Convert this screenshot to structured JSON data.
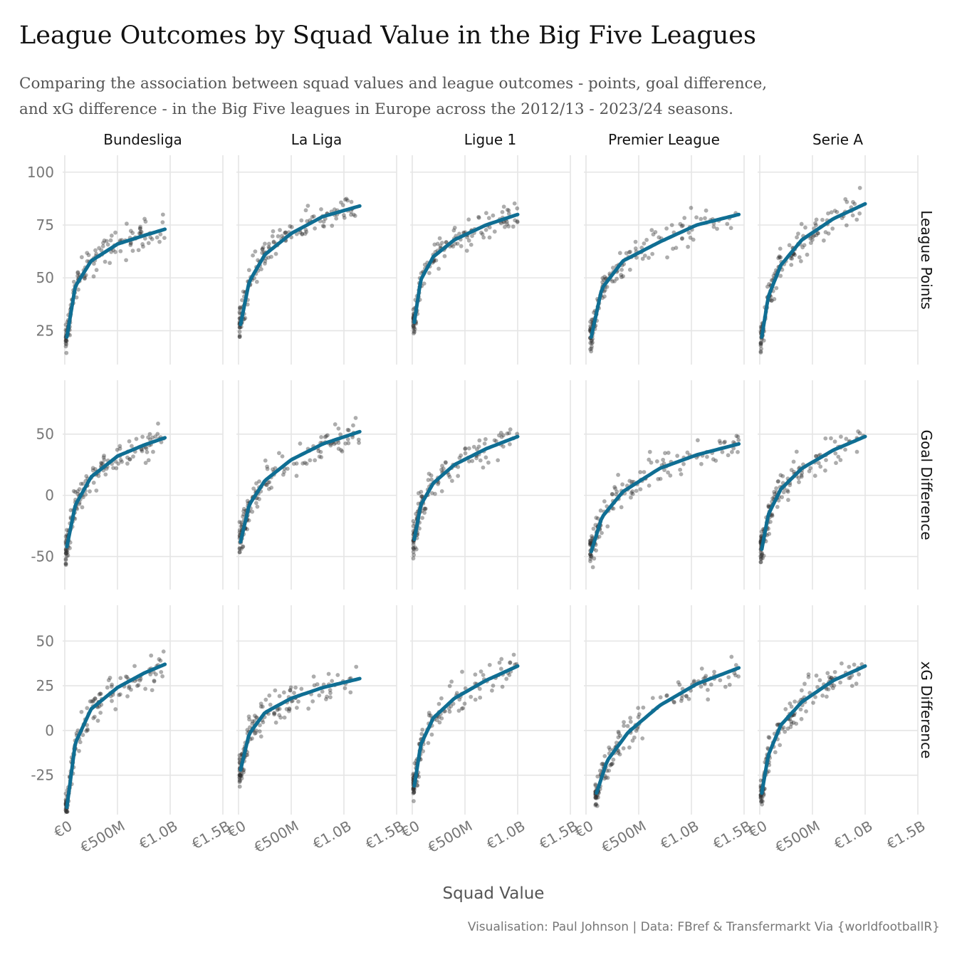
{
  "title": "League Outcomes by Squad Value in the Big Five Leagues",
  "subtitle": {
    "line1": "Comparing the association between squad values and league outcomes - points, goal difference,",
    "line2": "and xG difference - in the Big Five leagues in Europe across the 2012/13 - 2023/24 seasons."
  },
  "caption": "Visualisation: Paul Johnson | Data: FBref & Transfermarkt Via {worldfootballR}",
  "colors": {
    "fit_line": "#0F6E93",
    "points": "#333333",
    "grid": "#E5E5E5",
    "strip_text": "#111111",
    "axis_text": "#777777"
  },
  "chart_data": {
    "type": "scatter",
    "layout": "facet_grid",
    "x_label": "Squad Value",
    "x_ticks": [
      "€0",
      "€500M",
      "€1.0B",
      "€1.5B"
    ],
    "x_tick_values": [
      0,
      500,
      1000,
      1500
    ],
    "x_unit": "€M",
    "xlim": [
      -20,
      1500
    ],
    "grid": true,
    "trend": "logarithmic fit",
    "leagues": [
      "Bundesliga",
      "La Liga",
      "Ligue 1",
      "Premier League",
      "Serie A"
    ],
    "metrics": [
      {
        "name": "League Points",
        "ylim": [
          9,
          108
        ],
        "ticks": [
          25,
          50,
          75,
          100
        ],
        "tick_labels": [
          "25",
          "50",
          "75",
          "100"
        ]
      },
      {
        "name": "Goal Difference",
        "ylim": [
          -77,
          94
        ],
        "ticks": [
          -50,
          0,
          50
        ],
        "tick_labels": [
          "-50",
          "0",
          "50"
        ]
      },
      {
        "name": "xG Difference",
        "ylim": [
          -47,
          70
        ],
        "ticks": [
          -25,
          0,
          25,
          50
        ],
        "tick_labels": [
          "-25",
          "0",
          "25",
          "50"
        ]
      }
    ],
    "panels": {
      "Bundesliga": {
        "xmax": 950,
        "fits": {
          "League Points": [
            [
              20,
              22
            ],
            [
              100,
              46
            ],
            [
              250,
              58
            ],
            [
              500,
              66
            ],
            [
              750,
              70
            ],
            [
              950,
              73
            ]
          ],
          "Goal Difference": [
            [
              20,
              -42
            ],
            [
              100,
              -8
            ],
            [
              250,
              15
            ],
            [
              500,
              32
            ],
            [
              750,
              41
            ],
            [
              950,
              47
            ]
          ],
          "xG Difference": [
            [
              20,
              -43
            ],
            [
              100,
              -7
            ],
            [
              250,
              12
            ],
            [
              500,
              24
            ],
            [
              750,
              32
            ],
            [
              950,
              37
            ]
          ]
        }
      },
      "La Liga": {
        "xmax": 1150,
        "fits": {
          "League Points": [
            [
              20,
              28
            ],
            [
              100,
              48
            ],
            [
              250,
              61
            ],
            [
              500,
              71
            ],
            [
              800,
              79
            ],
            [
              1150,
              84
            ]
          ],
          "Goal Difference": [
            [
              20,
              -38
            ],
            [
              100,
              -8
            ],
            [
              250,
              12
            ],
            [
              500,
              29
            ],
            [
              800,
              42
            ],
            [
              1150,
              52
            ]
          ],
          "xG Difference": [
            [
              20,
              -22
            ],
            [
              100,
              -2
            ],
            [
              250,
              10
            ],
            [
              500,
              18
            ],
            [
              800,
              24
            ],
            [
              1150,
              29
            ]
          ]
        }
      },
      "Ligue 1": {
        "xmax": 1000,
        "fits": {
          "League Points": [
            [
              20,
              29
            ],
            [
              80,
              49
            ],
            [
              200,
              60
            ],
            [
              400,
              68
            ],
            [
              700,
              75
            ],
            [
              1000,
              80
            ]
          ],
          "Goal Difference": [
            [
              20,
              -36
            ],
            [
              80,
              -8
            ],
            [
              200,
              10
            ],
            [
              400,
              25
            ],
            [
              700,
              38
            ],
            [
              1000,
              48
            ]
          ],
          "xG Difference": [
            [
              20,
              -31
            ],
            [
              80,
              -8
            ],
            [
              200,
              7
            ],
            [
              400,
              18
            ],
            [
              700,
              28
            ],
            [
              1000,
              36
            ]
          ]
        }
      },
      "Premier League": {
        "xmax": 1450,
        "fits": {
          "League Points": [
            [
              50,
              22
            ],
            [
              150,
              45
            ],
            [
              350,
              58
            ],
            [
              700,
              67
            ],
            [
              1050,
              75
            ],
            [
              1450,
              80
            ]
          ],
          "Goal Difference": [
            [
              50,
              -46
            ],
            [
              150,
              -18
            ],
            [
              350,
              3
            ],
            [
              700,
              22
            ],
            [
              1050,
              33
            ],
            [
              1450,
              42
            ]
          ],
          "xG Difference": [
            [
              100,
              -35
            ],
            [
              200,
              -17
            ],
            [
              400,
              -1
            ],
            [
              700,
              14
            ],
            [
              1050,
              26
            ],
            [
              1450,
              35
            ]
          ]
        }
      },
      "Serie A": {
        "xmax": 1000,
        "fits": {
          "League Points": [
            [
              20,
              22
            ],
            [
              80,
              41
            ],
            [
              200,
              56
            ],
            [
              400,
              68
            ],
            [
              700,
              78
            ],
            [
              1000,
              85
            ]
          ],
          "Goal Difference": [
            [
              20,
              -44
            ],
            [
              80,
              -16
            ],
            [
              200,
              5
            ],
            [
              400,
              22
            ],
            [
              700,
              37
            ],
            [
              1000,
              48
            ]
          ],
          "xG Difference": [
            [
              20,
              -35
            ],
            [
              80,
              -14
            ],
            [
              200,
              3
            ],
            [
              400,
              16
            ],
            [
              700,
              28
            ],
            [
              1000,
              36
            ]
          ]
        }
      }
    }
  }
}
